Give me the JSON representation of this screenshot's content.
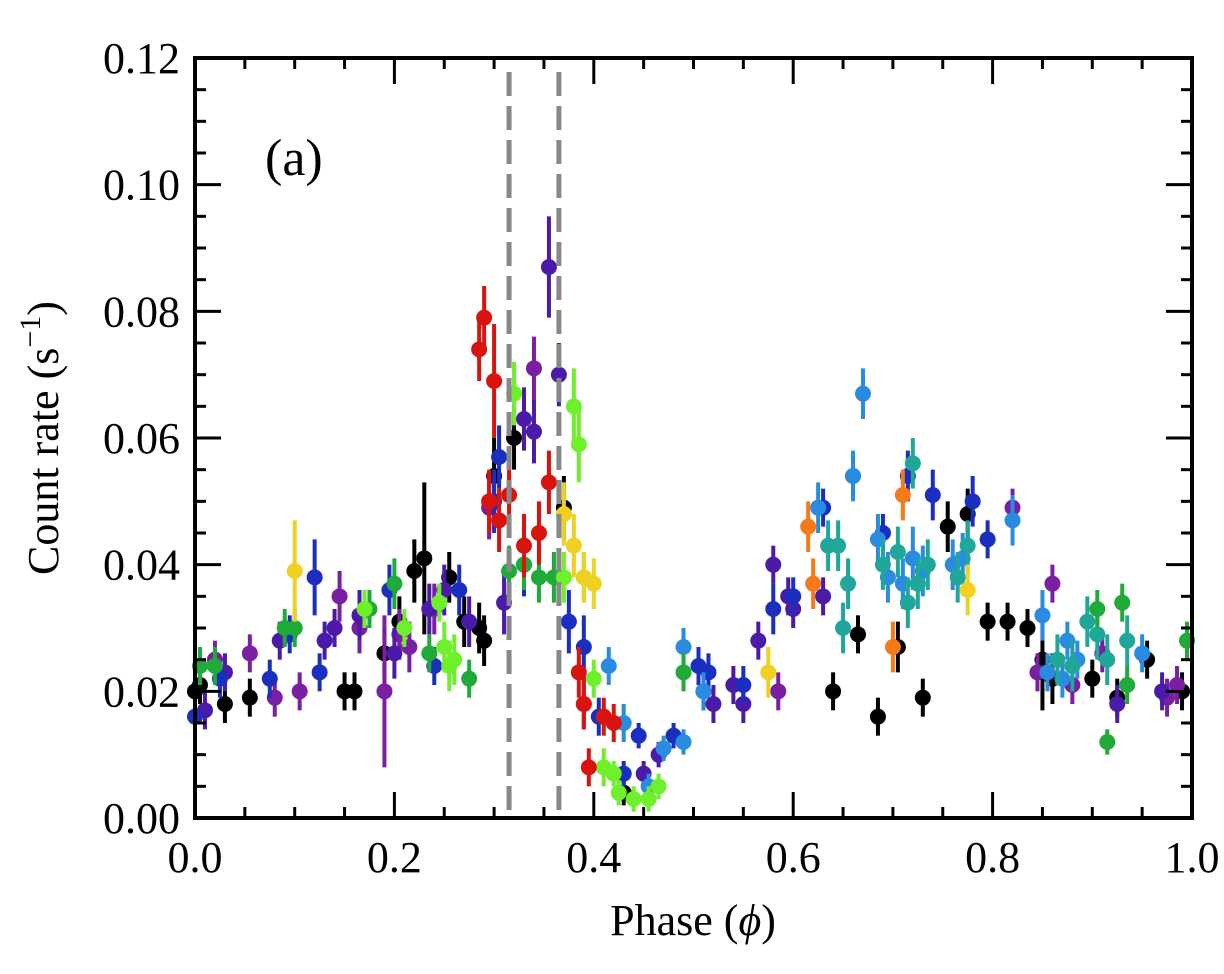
{
  "chart_data": {
    "type": "scatter",
    "title": "",
    "panel_label": "(a)",
    "xlabel": "Phase (ϕ)",
    "xlabel_parts": {
      "text": "Phase (",
      "symbol": "ϕ",
      "close": ")"
    },
    "ylabel": "Count rate (s⁻¹)",
    "ylabel_parts": {
      "text": "Count rate (s",
      "sup": "−1",
      "close": ")"
    },
    "xlim": [
      0.0,
      1.0
    ],
    "ylim": [
      0.0,
      0.12
    ],
    "x_ticks": [
      "0.0",
      "0.2",
      "0.4",
      "0.6",
      "0.8",
      "1.0"
    ],
    "x_tick_values": [
      0.0,
      0.2,
      0.4,
      0.6,
      0.8,
      1.0
    ],
    "x_minor_step": 0.05,
    "y_ticks": [
      "0.00",
      "0.02",
      "0.04",
      "0.06",
      "0.08",
      "0.10",
      "0.12"
    ],
    "y_tick_values": [
      0.0,
      0.02,
      0.04,
      0.06,
      0.08,
      0.1,
      0.12
    ],
    "y_minor_step": 0.005,
    "grid": false,
    "legend": "none",
    "vertical_lines": [
      {
        "x": 0.315,
        "style": "dashed",
        "color": "#888888"
      },
      {
        "x": 0.365,
        "style": "dashed",
        "color": "#888888"
      }
    ],
    "series": [
      {
        "name": "black",
        "color": "#000000",
        "points": [
          [
            0.0,
            0.02,
            0.003
          ],
          [
            0.005,
            0.021,
            0.003
          ],
          [
            0.03,
            0.018,
            0.003
          ],
          [
            0.055,
            0.019,
            0.003
          ],
          [
            0.15,
            0.02,
            0.003
          ],
          [
            0.16,
            0.02,
            0.003
          ],
          [
            0.19,
            0.026,
            0.004
          ],
          [
            0.205,
            0.031,
            0.004
          ],
          [
            0.22,
            0.039,
            0.005
          ],
          [
            0.23,
            0.041,
            0.012
          ],
          [
            0.255,
            0.038,
            0.004
          ],
          [
            0.27,
            0.031,
            0.004
          ],
          [
            0.285,
            0.03,
            0.004
          ],
          [
            0.29,
            0.028,
            0.004
          ],
          [
            0.3,
            0.054,
            0.006
          ],
          [
            0.32,
            0.06,
            0.005
          ],
          [
            0.37,
            0.049,
            0.005
          ],
          [
            0.43,
            0.004,
            0.002
          ],
          [
            0.64,
            0.02,
            0.003
          ],
          [
            0.665,
            0.029,
            0.003
          ],
          [
            0.685,
            0.016,
            0.003
          ],
          [
            0.705,
            0.027,
            0.004
          ],
          [
            0.73,
            0.019,
            0.003
          ],
          [
            0.755,
            0.046,
            0.004
          ],
          [
            0.775,
            0.048,
            0.004
          ],
          [
            0.795,
            0.031,
            0.003
          ],
          [
            0.815,
            0.031,
            0.003
          ],
          [
            0.835,
            0.03,
            0.003
          ],
          [
            0.85,
            0.025,
            0.008
          ],
          [
            0.86,
            0.022,
            0.004
          ],
          [
            0.9,
            0.022,
            0.003
          ],
          [
            0.925,
            0.019,
            0.003
          ],
          [
            0.955,
            0.025,
            0.003
          ],
          [
            0.99,
            0.02,
            0.003
          ]
        ]
      },
      {
        "name": "purple",
        "color": "#7a1fa2",
        "points": [
          [
            0.02,
            0.025,
            0.003
          ],
          [
            0.055,
            0.026,
            0.003
          ],
          [
            0.08,
            0.019,
            0.003
          ],
          [
            0.105,
            0.02,
            0.003
          ],
          [
            0.145,
            0.035,
            0.004
          ],
          [
            0.165,
            0.03,
            0.004
          ],
          [
            0.19,
            0.02,
            0.012
          ],
          [
            0.205,
            0.029,
            0.004
          ],
          [
            0.215,
            0.027,
            0.004
          ],
          [
            0.24,
            0.033,
            0.004
          ],
          [
            0.295,
            0.049,
            0.005
          ],
          [
            0.34,
            0.071,
            0.005
          ],
          [
            0.39,
            0.018,
            0.004
          ],
          [
            0.585,
            0.02,
            0.003
          ],
          [
            0.86,
            0.037,
            0.003
          ],
          [
            0.845,
            0.023,
            0.003
          ],
          [
            0.88,
            0.021,
            0.003
          ],
          [
            0.91,
            0.026,
            0.003
          ],
          [
            0.975,
            0.019,
            0.003
          ],
          [
            0.985,
            0.021,
            0.003
          ],
          [
            0.82,
            0.049,
            0.003
          ]
        ]
      },
      {
        "name": "indigo",
        "color": "#4b1aa8",
        "points": [
          [
            0.01,
            0.017,
            0.003
          ],
          [
            0.03,
            0.023,
            0.003
          ],
          [
            0.085,
            0.028,
            0.003
          ],
          [
            0.13,
            0.028,
            0.003
          ],
          [
            0.14,
            0.03,
            0.003
          ],
          [
            0.165,
            0.032,
            0.004
          ],
          [
            0.2,
            0.026,
            0.004
          ],
          [
            0.235,
            0.033,
            0.004
          ],
          [
            0.25,
            0.036,
            0.004
          ],
          [
            0.275,
            0.031,
            0.004
          ],
          [
            0.31,
            0.034,
            0.005
          ],
          [
            0.33,
            0.063,
            0.005
          ],
          [
            0.34,
            0.061,
            0.005
          ],
          [
            0.355,
            0.087,
            0.008
          ],
          [
            0.365,
            0.07,
            0.005
          ],
          [
            0.45,
            0.007,
            0.002
          ],
          [
            0.465,
            0.01,
            0.002
          ],
          [
            0.55,
            0.018,
            0.003
          ],
          [
            0.565,
            0.028,
            0.003
          ],
          [
            0.58,
            0.04,
            0.003
          ],
          [
            0.595,
            0.035,
            0.003
          ],
          [
            0.6,
            0.033,
            0.003
          ],
          [
            0.63,
            0.035,
            0.003
          ],
          [
            0.51,
            0.02,
            0.003
          ],
          [
            0.52,
            0.018,
            0.003
          ],
          [
            0.54,
            0.021,
            0.003
          ],
          [
            0.97,
            0.02,
            0.003
          ],
          [
            0.925,
            0.018,
            0.003
          ]
        ]
      },
      {
        "name": "blue",
        "color": "#1a2fbf",
        "points": [
          [
            0.0,
            0.016,
            0.003
          ],
          [
            0.025,
            0.022,
            0.003
          ],
          [
            0.075,
            0.022,
            0.003
          ],
          [
            0.095,
            0.029,
            0.003
          ],
          [
            0.12,
            0.038,
            0.006
          ],
          [
            0.125,
            0.023,
            0.003
          ],
          [
            0.195,
            0.036,
            0.004
          ],
          [
            0.24,
            0.024,
            0.003
          ],
          [
            0.265,
            0.036,
            0.004
          ],
          [
            0.3,
            0.05,
            0.005
          ],
          [
            0.305,
            0.057,
            0.005
          ],
          [
            0.33,
            0.04,
            0.005
          ],
          [
            0.375,
            0.031,
            0.005
          ],
          [
            0.39,
            0.027,
            0.005
          ],
          [
            0.405,
            0.016,
            0.003
          ],
          [
            0.43,
            0.007,
            0.002
          ],
          [
            0.445,
            0.013,
            0.002
          ],
          [
            0.48,
            0.013,
            0.002
          ],
          [
            0.505,
            0.024,
            0.003
          ],
          [
            0.515,
            0.023,
            0.003
          ],
          [
            0.55,
            0.021,
            0.003
          ],
          [
            0.58,
            0.033,
            0.004
          ],
          [
            0.6,
            0.035,
            0.003
          ],
          [
            0.715,
            0.054,
            0.004
          ],
          [
            0.74,
            0.051,
            0.004
          ],
          [
            0.78,
            0.05,
            0.004
          ],
          [
            0.795,
            0.044,
            0.003
          ],
          [
            0.63,
            0.049,
            0.003
          ],
          [
            0.66,
            0.054,
            0.003
          ],
          [
            0.69,
            0.045,
            0.003
          ]
        ]
      },
      {
        "name": "sky-blue",
        "color": "#2a8ce0",
        "points": [
          [
            0.415,
            0.024,
            0.003
          ],
          [
            0.43,
            0.015,
            0.003
          ],
          [
            0.455,
            0.005,
            0.002
          ],
          [
            0.47,
            0.011,
            0.002
          ],
          [
            0.49,
            0.027,
            0.003
          ],
          [
            0.49,
            0.012,
            0.002
          ],
          [
            0.51,
            0.02,
            0.003
          ],
          [
            0.625,
            0.049,
            0.004
          ],
          [
            0.66,
            0.054,
            0.004
          ],
          [
            0.685,
            0.044,
            0.004
          ],
          [
            0.695,
            0.038,
            0.004
          ],
          [
            0.71,
            0.037,
            0.004
          ],
          [
            0.73,
            0.039,
            0.004
          ],
          [
            0.76,
            0.04,
            0.004
          ],
          [
            0.77,
            0.041,
            0.004
          ],
          [
            0.82,
            0.047,
            0.004
          ],
          [
            0.85,
            0.032,
            0.004
          ],
          [
            0.855,
            0.023,
            0.003
          ],
          [
            0.87,
            0.022,
            0.003
          ],
          [
            0.875,
            0.028,
            0.003
          ],
          [
            0.885,
            0.025,
            0.003
          ],
          [
            0.95,
            0.026,
            0.003
          ],
          [
            0.67,
            0.067,
            0.004
          ],
          [
            0.72,
            0.041,
            0.005
          ]
        ]
      },
      {
        "name": "teal",
        "color": "#1fa89a",
        "points": [
          [
            0.635,
            0.043,
            0.004
          ],
          [
            0.645,
            0.043,
            0.004
          ],
          [
            0.655,
            0.037,
            0.004
          ],
          [
            0.65,
            0.03,
            0.004
          ],
          [
            0.69,
            0.04,
            0.004
          ],
          [
            0.705,
            0.042,
            0.004
          ],
          [
            0.715,
            0.034,
            0.004
          ],
          [
            0.72,
            0.056,
            0.004
          ],
          [
            0.725,
            0.037,
            0.004
          ],
          [
            0.735,
            0.04,
            0.004
          ],
          [
            0.765,
            0.038,
            0.004
          ],
          [
            0.775,
            0.043,
            0.004
          ],
          [
            0.865,
            0.025,
            0.004
          ],
          [
            0.88,
            0.024,
            0.004
          ],
          [
            0.895,
            0.031,
            0.004
          ],
          [
            0.905,
            0.029,
            0.004
          ],
          [
            0.915,
            0.025,
            0.004
          ],
          [
            0.935,
            0.028,
            0.004
          ]
        ]
      },
      {
        "name": "green",
        "color": "#1faa3a",
        "points": [
          [
            0.005,
            0.024,
            0.003
          ],
          [
            0.02,
            0.024,
            0.003
          ],
          [
            0.09,
            0.03,
            0.003
          ],
          [
            0.1,
            0.03,
            0.003
          ],
          [
            0.175,
            0.033,
            0.003
          ],
          [
            0.2,
            0.037,
            0.004
          ],
          [
            0.235,
            0.026,
            0.003
          ],
          [
            0.275,
            0.022,
            0.003
          ],
          [
            0.315,
            0.039,
            0.004
          ],
          [
            0.33,
            0.04,
            0.004
          ],
          [
            0.345,
            0.038,
            0.004
          ],
          [
            0.36,
            0.038,
            0.004
          ],
          [
            0.49,
            0.023,
            0.003
          ],
          [
            0.905,
            0.033,
            0.003
          ],
          [
            0.93,
            0.034,
            0.003
          ],
          [
            0.915,
            0.012,
            0.002
          ],
          [
            0.935,
            0.021,
            0.003
          ],
          [
            0.995,
            0.028,
            0.003
          ]
        ]
      },
      {
        "name": "lime",
        "color": "#6ef02a",
        "points": [
          [
            0.17,
            0.033,
            0.003
          ],
          [
            0.21,
            0.03,
            0.003
          ],
          [
            0.245,
            0.034,
            0.003
          ],
          [
            0.25,
            0.027,
            0.004
          ],
          [
            0.255,
            0.024,
            0.004
          ],
          [
            0.26,
            0.025,
            0.004
          ],
          [
            0.32,
            0.067,
            0.005
          ],
          [
            0.38,
            0.065,
            0.006
          ],
          [
            0.385,
            0.059,
            0.006
          ],
          [
            0.39,
            0.038,
            0.004
          ],
          [
            0.4,
            0.022,
            0.003
          ],
          [
            0.41,
            0.008,
            0.003
          ],
          [
            0.42,
            0.007,
            0.002
          ],
          [
            0.425,
            0.004,
            0.002
          ],
          [
            0.44,
            0.003,
            0.002
          ],
          [
            0.455,
            0.003,
            0.002
          ],
          [
            0.465,
            0.005,
            0.002
          ],
          [
            0.37,
            0.038,
            0.004
          ]
        ]
      },
      {
        "name": "red",
        "color": "#d9140f",
        "points": [
          [
            0.285,
            0.074,
            0.005
          ],
          [
            0.29,
            0.079,
            0.005
          ],
          [
            0.295,
            0.05,
            0.005
          ],
          [
            0.3,
            0.069,
            0.009
          ],
          [
            0.305,
            0.047,
            0.005
          ],
          [
            0.315,
            0.051,
            0.005
          ],
          [
            0.33,
            0.043,
            0.005
          ],
          [
            0.345,
            0.045,
            0.005
          ],
          [
            0.355,
            0.053,
            0.005
          ],
          [
            0.385,
            0.023,
            0.004
          ],
          [
            0.39,
            0.018,
            0.004
          ],
          [
            0.395,
            0.008,
            0.003
          ],
          [
            0.41,
            0.016,
            0.003
          ],
          [
            0.42,
            0.015,
            0.003
          ]
        ]
      },
      {
        "name": "yellow",
        "color": "#f0d020",
        "points": [
          [
            0.1,
            0.039,
            0.008
          ],
          [
            0.37,
            0.048,
            0.005
          ],
          [
            0.38,
            0.043,
            0.005
          ],
          [
            0.39,
            0.038,
            0.004
          ],
          [
            0.4,
            0.037,
            0.004
          ],
          [
            0.575,
            0.023,
            0.004
          ],
          [
            0.775,
            0.036,
            0.004
          ]
        ]
      },
      {
        "name": "orange",
        "color": "#f57a1a",
        "points": [
          [
            0.615,
            0.046,
            0.004
          ],
          [
            0.62,
            0.037,
            0.004
          ],
          [
            0.7,
            0.027,
            0.004
          ],
          [
            0.71,
            0.051,
            0.004
          ]
        ]
      }
    ]
  }
}
